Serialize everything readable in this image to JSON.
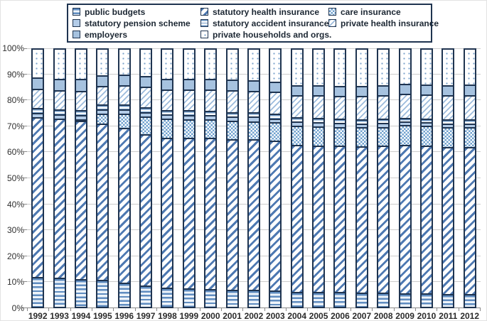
{
  "legend": {
    "items": [
      {
        "key": "public_budgets",
        "label": "public budgets"
      },
      {
        "key": "statutory_health_insurance",
        "label": "statutory health insurance"
      },
      {
        "key": "care_insurance",
        "label": "care insurance"
      },
      {
        "key": "statutory_pension_scheme",
        "label": "statutory pension scheme"
      },
      {
        "key": "statutory_accident_insurance",
        "label": "statutory accident insurance"
      },
      {
        "key": "private_health_insurance",
        "label": "private health insurance"
      },
      {
        "key": "employers",
        "label": "employers"
      },
      {
        "key": "private_households",
        "label": "private households and orgs."
      }
    ]
  },
  "chart_data": {
    "type": "bar",
    "subtype": "stacked-100-percent",
    "title": "",
    "xlabel": "",
    "ylabel": "",
    "ylim": [
      0,
      100
    ],
    "grid": true,
    "legend_position": "top",
    "y_ticks": [
      "0%",
      "10%",
      "20%",
      "30%",
      "40%",
      "50%",
      "60%",
      "70%",
      "80%",
      "90%",
      "100%"
    ],
    "categories": [
      "1992",
      "1993",
      "1994",
      "1995",
      "1996",
      "1997",
      "1998",
      "1999",
      "2000",
      "2001",
      "2002",
      "2003",
      "2004",
      "2005",
      "2006",
      "2007",
      "2008",
      "2009",
      "2010",
      "2011",
      "2012"
    ],
    "series": [
      {
        "key": "public_budgets",
        "name": "public budgets",
        "values": [
          11.5,
          11.4,
          11.0,
          10.4,
          9.5,
          8.2,
          7.5,
          7.1,
          6.8,
          6.6,
          6.5,
          6.3,
          5.9,
          5.8,
          5.7,
          5.5,
          5.4,
          5.3,
          5.1,
          5.0,
          4.9
        ]
      },
      {
        "key": "statutory_health_insurance",
        "name": "statutory health insurance",
        "values": [
          62.3,
          61.8,
          61.6,
          60.9,
          60.1,
          58.8,
          58.3,
          58.6,
          58.8,
          58.6,
          58.6,
          58.3,
          57.2,
          56.9,
          56.9,
          57.0,
          57.2,
          57.8,
          57.6,
          57.2,
          57.3
        ]
      },
      {
        "key": "care_insurance",
        "name": "care insurance",
        "values": [
          0.0,
          0.0,
          0.4,
          3.8,
          5.6,
          7.1,
          7.3,
          7.3,
          7.3,
          7.2,
          7.1,
          7.1,
          7.4,
          7.5,
          7.4,
          7.4,
          7.4,
          7.5,
          7.6,
          7.7,
          7.7
        ]
      },
      {
        "key": "statutory_pension_scheme",
        "name": "statutory pension scheme",
        "values": [
          1.7,
          1.7,
          1.7,
          1.7,
          1.7,
          1.7,
          1.7,
          1.7,
          1.7,
          1.7,
          1.7,
          1.6,
          1.6,
          1.6,
          1.5,
          1.5,
          1.5,
          1.5,
          1.4,
          1.4,
          1.4
        ]
      },
      {
        "key": "statutory_accident_insurance",
        "name": "statutory accident insurance",
        "values": [
          1.8,
          1.8,
          1.8,
          1.8,
          1.8,
          1.8,
          1.7,
          1.7,
          1.7,
          1.7,
          1.7,
          1.7,
          1.6,
          1.6,
          1.6,
          1.6,
          1.6,
          1.5,
          1.5,
          1.6,
          1.6
        ]
      },
      {
        "key": "private_health_insurance",
        "name": "private health insurance",
        "values": [
          7.4,
          7.6,
          7.6,
          7.2,
          7.5,
          7.9,
          8.1,
          8.2,
          8.2,
          8.4,
          8.5,
          8.6,
          8.7,
          8.9,
          9.0,
          9.1,
          9.1,
          9.2,
          9.3,
          9.4,
          9.5
        ]
      },
      {
        "key": "employers",
        "name": "employers",
        "values": [
          4.5,
          4.5,
          4.5,
          4.2,
          4.1,
          4.2,
          4.2,
          4.1,
          4.1,
          4.1,
          4.1,
          4.1,
          3.9,
          3.9,
          3.9,
          3.9,
          3.9,
          3.9,
          3.9,
          4.0,
          4.0
        ]
      },
      {
        "key": "private_households",
        "name": "private households and orgs.",
        "values": [
          10.8,
          11.2,
          11.4,
          10.0,
          9.7,
          10.3,
          11.2,
          11.3,
          11.4,
          11.7,
          11.8,
          12.3,
          13.7,
          13.8,
          14.0,
          14.0,
          13.9,
          13.3,
          13.6,
          13.7,
          13.6
        ]
      }
    ]
  },
  "colors": {
    "segment_border": "#1f3450",
    "stripe_blue": "#4e79b2",
    "light_blue_fill": "#b3cce8",
    "medium_blue_fill": "#a6c2df",
    "gridline": "#cccccc",
    "axis": "#8a8a8a"
  }
}
